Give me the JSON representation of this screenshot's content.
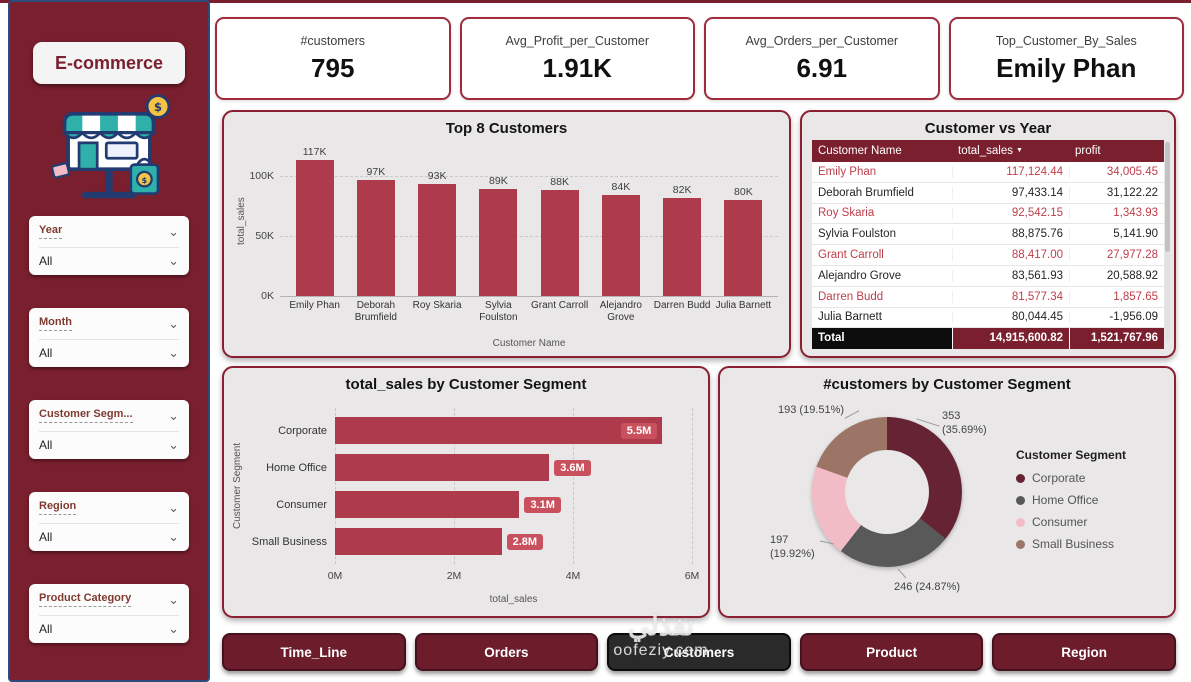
{
  "colors": {
    "maroon": "#7A1F2E",
    "panel_border": "#8B2034",
    "bar": "#AE3B4C",
    "value_chip": "#C9515E",
    "table_highlight_text": "#BF3E4A",
    "nav_button": "#6C1C2A",
    "nav_button_active": "#2A2A2A"
  },
  "icons": {
    "chevron_down": "⌄",
    "sort_desc": "▼"
  },
  "sidebar": {
    "title": "E-commerce",
    "filters": [
      {
        "label": "Year",
        "value": "All"
      },
      {
        "label": "Month",
        "value": "All"
      },
      {
        "label": "Customer Segm...",
        "value": "All"
      },
      {
        "label": "Region",
        "value": "All"
      },
      {
        "label": "Product Category",
        "value": "All"
      }
    ]
  },
  "kpis": [
    {
      "label": "#customers",
      "value": "795"
    },
    {
      "label": "Avg_Profit_per_Customer",
      "value": "1.91K"
    },
    {
      "label": "Avg_Orders_per_Customer",
      "value": "6.91"
    },
    {
      "label": "Top_Customer_By_Sales",
      "value": "Emily Phan"
    }
  ],
  "nav": {
    "buttons": [
      {
        "label": "Time_Line",
        "active": false
      },
      {
        "label": "Orders",
        "active": false
      },
      {
        "label": "Customers",
        "active": true
      },
      {
        "label": "Product",
        "active": false
      },
      {
        "label": "Region",
        "active": false
      }
    ]
  },
  "watermark": {
    "line1": "نفذلي",
    "line2": "oofeziy.com"
  },
  "chart_data": [
    {
      "type": "bar",
      "title": "Top 8 Customers",
      "xlabel": "Customer Name",
      "ylabel": "total_sales",
      "categories": [
        "Emily Phan",
        "Deborah Brumfield",
        "Roy Skaria",
        "Sylvia Foulston",
        "Grant Carroll",
        "Alejandro Grove",
        "Darren Budd",
        "Julia Barnett"
      ],
      "values": [
        117000,
        97000,
        93000,
        89000,
        88000,
        84000,
        82000,
        80000
      ],
      "value_labels": [
        "117K",
        "97K",
        "93K",
        "89K",
        "88K",
        "84K",
        "82K",
        "80K"
      ],
      "yticks": [
        "0K",
        "50K",
        "100K"
      ],
      "ylim": [
        0,
        125000
      ],
      "grid": true,
      "bar_color": "#AE3B4C"
    },
    {
      "type": "table",
      "title": "Customer vs Year",
      "columns": [
        "Customer Name",
        "total_sales",
        "profit"
      ],
      "sorted_column": "total_sales",
      "rows": [
        {
          "name": "Emily Phan",
          "total_sales": "117,124.44",
          "profit": "34,005.45",
          "highlight": true
        },
        {
          "name": "Deborah Brumfield",
          "total_sales": "97,433.14",
          "profit": "31,122.22",
          "highlight": false
        },
        {
          "name": "Roy Skaria",
          "total_sales": "92,542.15",
          "profit": "1,343.93",
          "highlight": true
        },
        {
          "name": "Sylvia Foulston",
          "total_sales": "88,875.76",
          "profit": "5,141.90",
          "highlight": false
        },
        {
          "name": "Grant Carroll",
          "total_sales": "88,417.00",
          "profit": "27,977.28",
          "highlight": true
        },
        {
          "name": "Alejandro Grove",
          "total_sales": "83,561.93",
          "profit": "20,588.92",
          "highlight": false
        },
        {
          "name": "Darren Budd",
          "total_sales": "81,577.34",
          "profit": "1,857.65",
          "highlight": true
        },
        {
          "name": "Julia Barnett",
          "total_sales": "80,044.45",
          "profit": "-1,956.09",
          "highlight": false
        }
      ],
      "total": {
        "name": "Total",
        "total_sales": "14,915,600.82",
        "profit": "1,521,767.96"
      }
    },
    {
      "type": "bar",
      "orientation": "horizontal",
      "title": "total_sales by Customer Segment",
      "xlabel": "total_sales",
      "ylabel": "Customer Segment",
      "categories": [
        "Corporate",
        "Home Office",
        "Consumer",
        "Small Business"
      ],
      "values": [
        5.5,
        3.6,
        3.1,
        2.8
      ],
      "value_labels": [
        "5.5M",
        "3.6M",
        "3.1M",
        "2.8M"
      ],
      "xticks": [
        "0M",
        "2M",
        "4M",
        "6M"
      ],
      "xlim": [
        0,
        6
      ],
      "grid": true,
      "bar_color": "#AE3B4C"
    },
    {
      "type": "pie",
      "title": "#customers by Customer Segment",
      "legend_title": "Customer Segment",
      "legend_position": "right",
      "slices": [
        {
          "name": "Corporate",
          "value": 353,
          "pct": 35.69,
          "label": "353 (35.69%)",
          "color": "#662334"
        },
        {
          "name": "Home Office",
          "value": 246,
          "pct": 24.87,
          "label": "246 (24.87%)",
          "color": "#595959"
        },
        {
          "name": "Consumer",
          "value": 197,
          "pct": 19.92,
          "label": "197 (19.92%)",
          "color": "#F2BCC6"
        },
        {
          "name": "Small Business",
          "value": 193,
          "pct": 19.51,
          "label": "193 (19.51%)",
          "color": "#9C7566"
        }
      ]
    }
  ]
}
